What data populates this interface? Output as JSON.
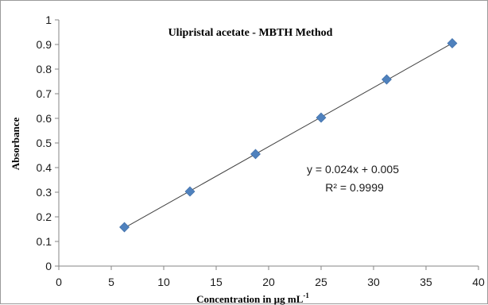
{
  "chart_data": {
    "type": "scatter",
    "title": "Ulipristal  acetate - MBTH Method",
    "xlabel": "Concentration in  µg mL",
    "xlabel_sup": "-1",
    "ylabel": "Absorbance",
    "xlim": [
      0,
      40
    ],
    "ylim": [
      0,
      1
    ],
    "x_ticks": [
      "0",
      "5",
      "10",
      "15",
      "20",
      "25",
      "30",
      "35",
      "40"
    ],
    "y_ticks": [
      "0",
      "0.1",
      "0.2",
      "0.3",
      "0.4",
      "0.5",
      "0.6",
      "0.7",
      "0.8",
      "0.9",
      "1"
    ],
    "grid": false,
    "series": [
      {
        "x": [
          6.25,
          12.5,
          18.75,
          25,
          31.25,
          37.5
        ],
        "y": [
          0.158,
          0.303,
          0.455,
          0.603,
          0.758,
          0.905
        ],
        "color": "#4f81bd",
        "marker": "diamond"
      }
    ],
    "trendline": {
      "type": "linear",
      "slope": 0.024,
      "intercept": 0.005,
      "x_range": [
        6.25,
        37.5
      ],
      "color": "#404040"
    },
    "annotations": {
      "equation": "y = 0.024x + 0.005",
      "r2": "R² = 0.9999"
    }
  }
}
